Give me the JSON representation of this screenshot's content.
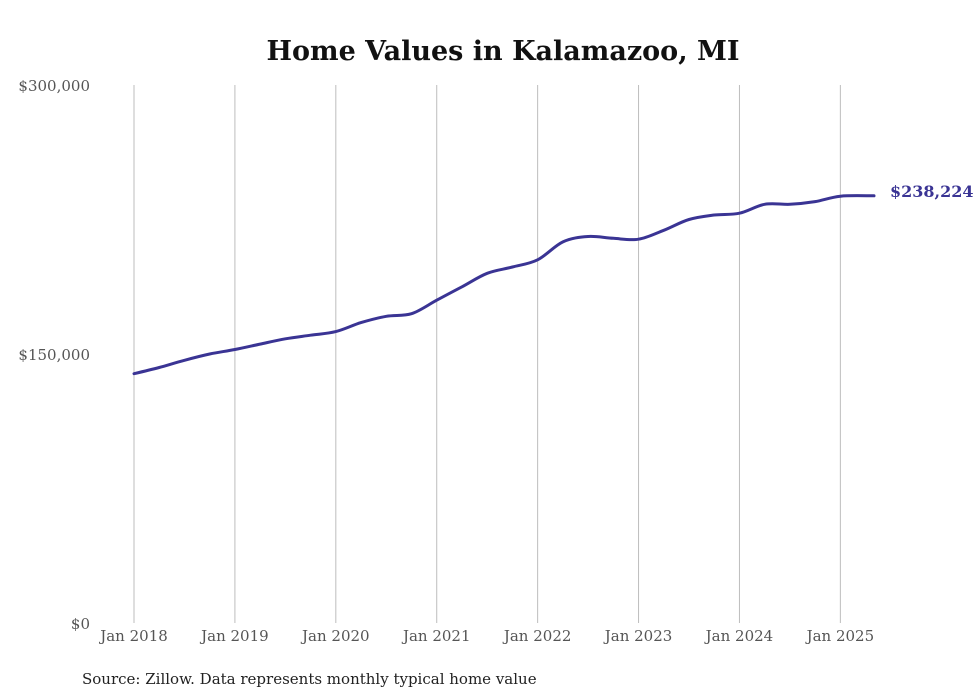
{
  "chart_data": {
    "type": "line",
    "title": "Home Values in Kalamazoo, MI",
    "xlabel": "",
    "ylabel": "",
    "ylim": [
      0,
      300000
    ],
    "yticks": [
      0,
      150000,
      300000
    ],
    "ytick_labels": [
      "$0",
      "$150,000",
      "$300,000"
    ],
    "xlim": [
      "2018-01",
      "2025-05"
    ],
    "xticks": [
      "2018-01",
      "2019-01",
      "2020-01",
      "2021-01",
      "2022-01",
      "2023-01",
      "2024-01",
      "2025-01"
    ],
    "xtick_labels": [
      "Jan 2018",
      "Jan 2019",
      "Jan 2020",
      "Jan 2021",
      "Jan 2022",
      "Jan 2023",
      "Jan 2024",
      "Jan 2025"
    ],
    "grid": "vertical",
    "series": [
      {
        "color": "#3a3494",
        "end_label": "$238,224",
        "x": [
          "2018-01",
          "2018-04",
          "2018-07",
          "2018-10",
          "2019-01",
          "2019-04",
          "2019-07",
          "2019-10",
          "2020-01",
          "2020-04",
          "2020-07",
          "2020-10",
          "2021-01",
          "2021-04",
          "2021-07",
          "2021-10",
          "2022-01",
          "2022-04",
          "2022-07",
          "2022-10",
          "2023-01",
          "2023-04",
          "2023-07",
          "2023-10",
          "2024-01",
          "2024-04",
          "2024-07",
          "2024-10",
          "2025-01",
          "2025-05"
        ],
        "values": [
          139000,
          142500,
          146500,
          150000,
          152500,
          155500,
          158500,
          160500,
          162500,
          167500,
          171000,
          172500,
          180000,
          187500,
          195000,
          198500,
          202500,
          212500,
          215500,
          214500,
          214000,
          219000,
          225000,
          227500,
          228500,
          233500,
          233500,
          235000,
          238000,
          238224
        ]
      }
    ]
  },
  "footer": {
    "source": "Source: Zillow. Data represents monthly typical home value"
  }
}
